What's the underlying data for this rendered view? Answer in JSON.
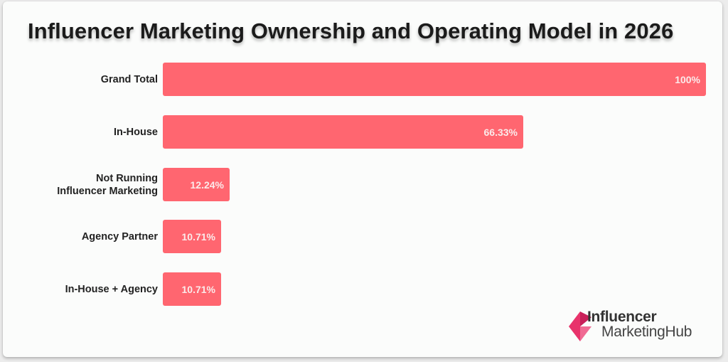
{
  "chart_data": {
    "type": "bar",
    "orientation": "horizontal",
    "title": "Influencer Marketing Ownership and Operating Model in 2026",
    "xlabel": "",
    "ylabel": "",
    "xlim": [
      0,
      100
    ],
    "grid": false,
    "categories": [
      "Grand Total",
      "In-House",
      "Not Running\nInfluencer Marketing",
      "Agency Partner",
      "In-House + Agency"
    ],
    "values": [
      100,
      66.33,
      12.24,
      10.71,
      10.71
    ],
    "value_labels": [
      "100%",
      "66.33%",
      "12.24%",
      "10.71%",
      "10.71%"
    ],
    "bar_color": "#ff6670"
  },
  "branding": {
    "logo_line1": "Influencer",
    "logo_line2": "MarketingHub",
    "logo_colors": [
      "#e8336b",
      "#c8205a",
      "#f06a93"
    ]
  }
}
